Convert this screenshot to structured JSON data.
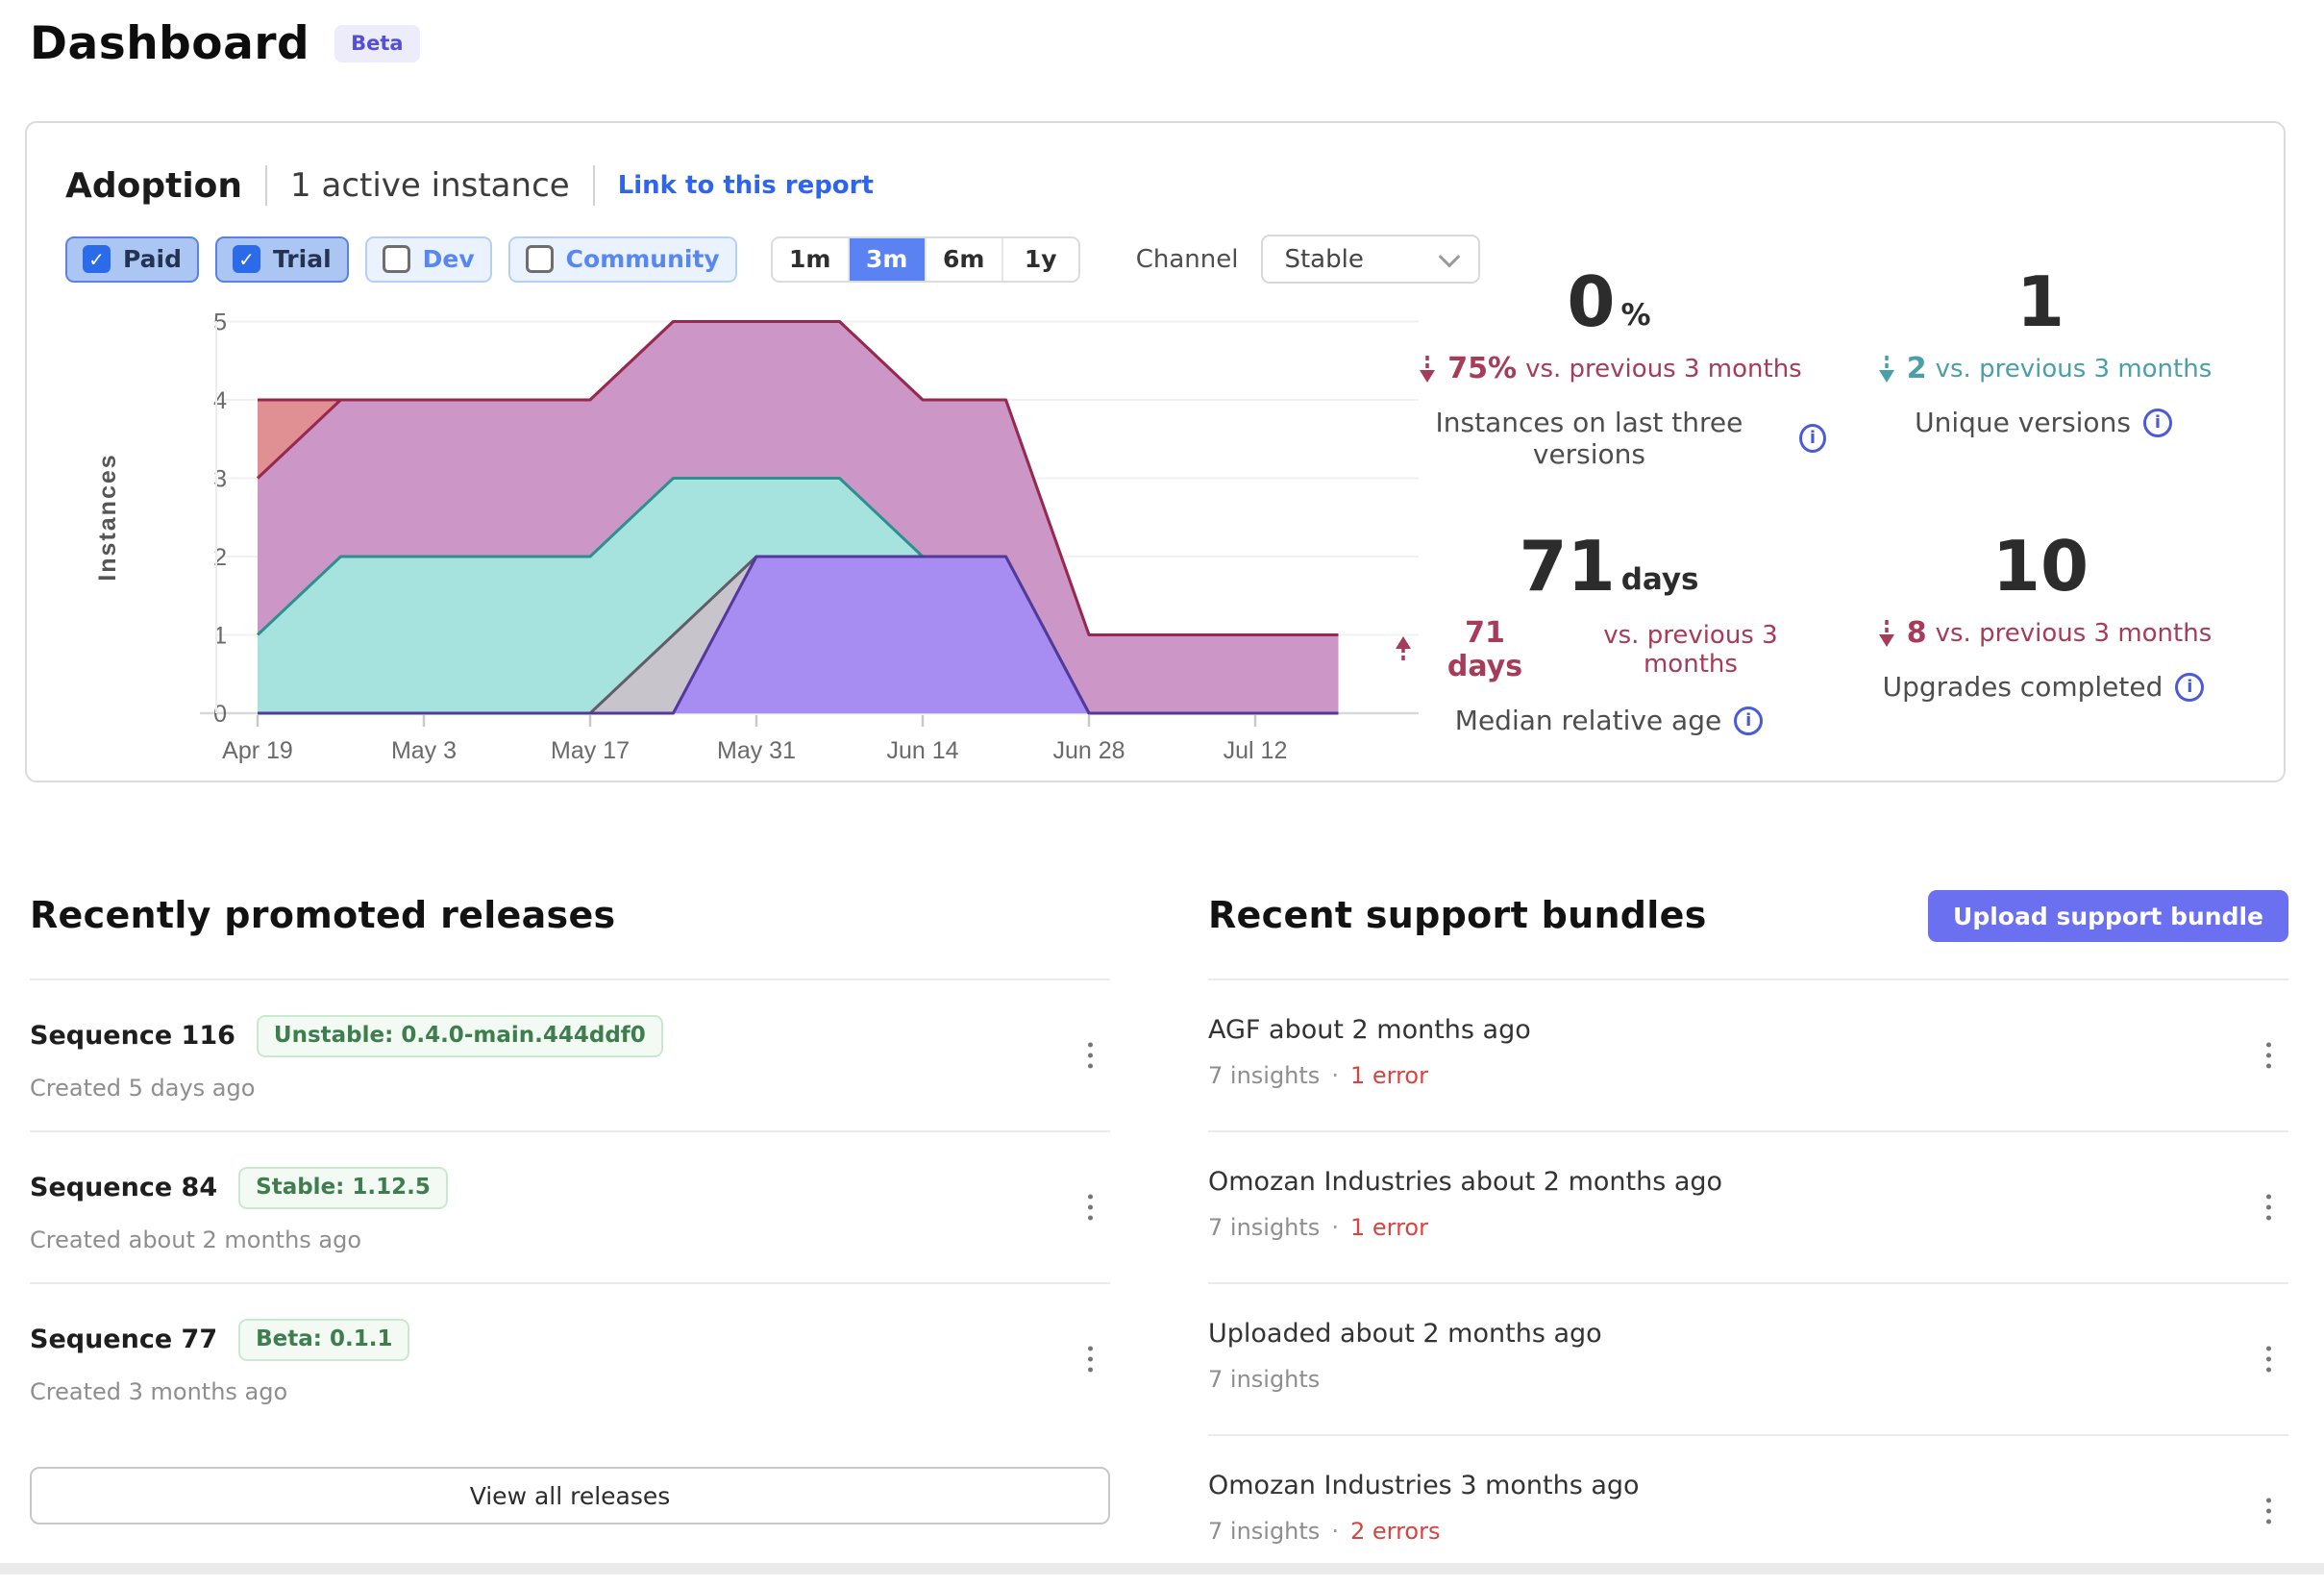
{
  "page": {
    "title": "Dashboard",
    "beta_badge": "Beta"
  },
  "adoption": {
    "title": "Adoption",
    "active_instances": "1 active instance",
    "link_label": "Link to this report",
    "filters": [
      {
        "label": "Paid",
        "checked": true
      },
      {
        "label": "Trial",
        "checked": true
      },
      {
        "label": "Dev",
        "checked": false
      },
      {
        "label": "Community",
        "checked": false
      }
    ],
    "ranges": {
      "options": [
        "1m",
        "3m",
        "6m",
        "1y"
      ],
      "selected": "3m"
    },
    "channel_label": "Channel",
    "channel_value": "Stable",
    "stats": [
      {
        "value": "0",
        "unit": "%",
        "direction": "down",
        "color": "#A63C59",
        "delta_value": "75%",
        "delta_suffix": "vs. previous 3 months",
        "label": "Instances on last three versions"
      },
      {
        "value": "1",
        "unit": "",
        "direction": "down",
        "color": "#4AA0A8",
        "delta_value": "2",
        "delta_suffix": "vs. previous 3 months",
        "label": "Unique versions"
      },
      {
        "value": "71",
        "unit": "days",
        "direction": "up",
        "color": "#A63C59",
        "delta_value": "71 days",
        "delta_suffix": "vs. previous 3 months",
        "label": "Median relative age"
      },
      {
        "value": "10",
        "unit": "",
        "direction": "down",
        "color": "#A63C59",
        "delta_value": "8",
        "delta_suffix": "vs. previous 3 months",
        "label": "Upgrades completed"
      }
    ]
  },
  "chart_data": {
    "type": "area",
    "title": "Adoption — instances by version over time",
    "xlabel": "",
    "ylabel": "Instances",
    "ylim": [
      0,
      5
    ],
    "grid": true,
    "legend_position": "none",
    "x": [
      "Apr 19",
      "Apr 26",
      "May 3",
      "May 10",
      "May 17",
      "May 24",
      "May 31",
      "Jun 7",
      "Jun 14",
      "Jun 21",
      "Jun 28",
      "Jul 5",
      "Jul 12",
      "Jul 19"
    ],
    "x_tick_labels": [
      "Apr 19",
      "May 3",
      "May 17",
      "May 31",
      "Jun 14",
      "Jun 28",
      "Jul 12"
    ],
    "y_ticks": [
      0,
      1,
      2,
      3,
      4,
      5
    ],
    "series": [
      {
        "name": "series-red",
        "fill": "#E08F92",
        "stroke": "#97294E",
        "values": [
          4,
          4,
          4,
          4,
          4,
          5,
          5,
          5,
          4,
          4,
          1,
          1,
          1,
          1
        ]
      },
      {
        "name": "series-magenta",
        "fill": "#CC96C7",
        "stroke": "#97294E",
        "values": [
          3,
          4,
          4,
          4,
          4,
          5,
          5,
          5,
          4,
          4,
          1,
          1,
          1,
          1
        ]
      },
      {
        "name": "series-teal",
        "fill": "#A6E3DF",
        "stroke": "#2F8F8F",
        "values": [
          1,
          2,
          2,
          2,
          2,
          3,
          3,
          3,
          2,
          2,
          0,
          0,
          0,
          0
        ]
      },
      {
        "name": "series-gray",
        "fill": "#C7C4CC",
        "stroke": "#605D69",
        "values": [
          0,
          0,
          0,
          0,
          0,
          1,
          2,
          2,
          2,
          2,
          0,
          0,
          0,
          0
        ]
      },
      {
        "name": "series-purple",
        "fill": "#A78DF1",
        "stroke": "#53399B",
        "values": [
          0,
          0,
          0,
          0,
          0,
          0,
          2,
          2,
          2,
          2,
          0,
          0,
          0,
          0
        ]
      }
    ]
  },
  "releases": {
    "heading": "Recently promoted releases",
    "view_all_label": "View all releases",
    "items": [
      {
        "title": "Sequence 116",
        "badge": "Unstable: 0.4.0-main.444ddf0",
        "created": "Created 5 days ago"
      },
      {
        "title": "Sequence 84",
        "badge": "Stable: 1.12.5",
        "created": "Created about 2 months ago"
      },
      {
        "title": "Sequence 77",
        "badge": "Beta: 0.1.1",
        "created": "Created 3 months ago"
      }
    ]
  },
  "bundles": {
    "heading": "Recent support bundles",
    "upload_label": "Upload support bundle",
    "dot": "·",
    "items": [
      {
        "title": "AGF about 2 months ago",
        "insights": "7 insights",
        "errors": "1 error"
      },
      {
        "title": "Omozan Industries about 2 months ago",
        "insights": "7 insights",
        "errors": "1 error"
      },
      {
        "title": "Uploaded about 2 months ago",
        "insights": "7 insights",
        "errors": ""
      },
      {
        "title": "Omozan Industries 3 months ago",
        "insights": "7 insights",
        "errors": "2 errors"
      }
    ]
  }
}
